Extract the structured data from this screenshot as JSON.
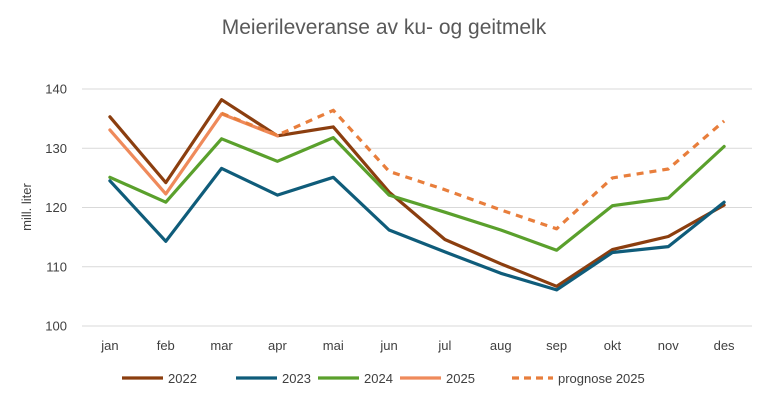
{
  "chart_data": {
    "type": "line",
    "title": "Meierileveranse av ku- og geitmelk",
    "xlabel": "",
    "ylabel": "mill. liter",
    "ylim": [
      100,
      140
    ],
    "yticks": [
      100,
      110,
      120,
      130,
      140
    ],
    "categories": [
      "jan",
      "feb",
      "mar",
      "apr",
      "mai",
      "jun",
      "jul",
      "aug",
      "sep",
      "okt",
      "nov",
      "des"
    ],
    "grid": true,
    "legend_position": "bottom",
    "series": [
      {
        "name": "2022",
        "color": "#8B3E0F",
        "dashed": false,
        "values": [
          135.3,
          124.2,
          138.2,
          132.1,
          133.6,
          122.6,
          114.6,
          110.5,
          106.7,
          112.9,
          115.1,
          120.4
        ]
      },
      {
        "name": "2023",
        "color": "#0F5C7A",
        "dashed": false,
        "values": [
          124.5,
          114.3,
          126.6,
          122.1,
          125.1,
          116.2,
          112.5,
          108.9,
          106.1,
          112.4,
          113.4,
          120.9
        ]
      },
      {
        "name": "2024",
        "color": "#5AA02C",
        "dashed": false,
        "values": [
          125.1,
          120.9,
          131.6,
          127.8,
          131.8,
          122.1,
          119.2,
          116.2,
          112.8,
          120.3,
          121.6,
          130.3
        ]
      },
      {
        "name": "2025",
        "color": "#EF8A5B",
        "dashed": false,
        "values": [
          133.1,
          122.3,
          135.8,
          132.1,
          null,
          null,
          null,
          null,
          null,
          null,
          null,
          null
        ]
      },
      {
        "name": "prognose 2025",
        "color": "#E87E3C",
        "dashed": true,
        "values": [
          null,
          null,
          135.9,
          132.2,
          136.4,
          126.1,
          123.0,
          119.6,
          116.4,
          125.0,
          126.5,
          134.6
        ]
      }
    ]
  }
}
